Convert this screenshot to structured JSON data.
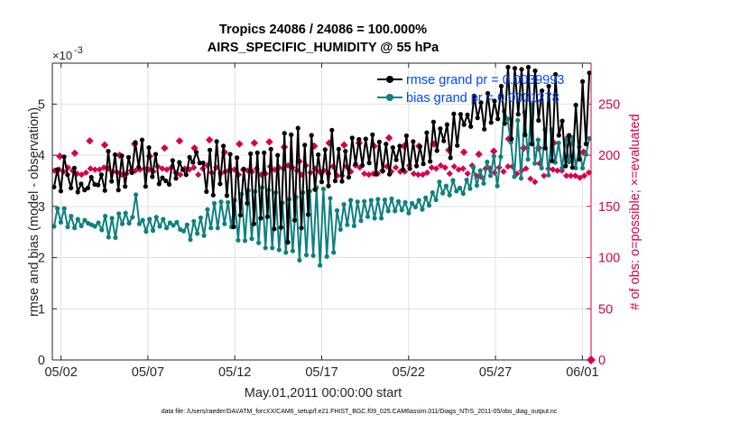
{
  "chart_data": {
    "type": "line",
    "title": [
      "Tropics 24086 / 24086 = 100.000%",
      "AIRS_SPECIFIC_HUMIDITY @ 55 hPa"
    ],
    "xlabel": "May.01,2011 00:00:00 start",
    "ylabel": "rmse and bias (model - observation)",
    "ylabel_right": "# of obs: o=possible; ×=evaluated",
    "exponent_label": "×10",
    "exponent_power": "-3",
    "footer": "data file: /Users/raeder/DAI/ATM_forcXX/CAM6_setup/f.e21.FHIST_BGC.f09_025.CAM6assim.011/Diags_NTrS_2011-05/obs_diag_output.nc",
    "xlim": [
      0.5,
      31.5
    ],
    "ylim": [
      0,
      5.8
    ],
    "ylim_right": [
      0,
      290
    ],
    "x_ticks": [
      1,
      6,
      11,
      16,
      21,
      26,
      31
    ],
    "x_tick_labels": [
      "05/02",
      "05/07",
      "05/12",
      "05/17",
      "05/22",
      "05/27",
      "06/01"
    ],
    "y_ticks": [
      "0",
      "1",
      "2",
      "3",
      "4",
      "5"
    ],
    "y_ticks_right": [
      "0",
      "50",
      "100",
      "150",
      "200",
      "250"
    ],
    "legend": {
      "position": "top-right",
      "entries": [
        "rmse grand pr = 0.0039993",
        "bias grand pr = 0.0031278"
      ]
    },
    "colors": {
      "rmse": "#000000",
      "bias": "#0f8080",
      "counts": "#d6004f",
      "grid": "#e0e0e0",
      "axis": "#262626",
      "legend_text": "#0046ff"
    },
    "series": [
      {
        "name": "rmse",
        "unit": "x1e-3",
        "values": [
          3.38,
          3.72,
          3.3,
          3.97,
          3.62,
          3.36,
          3.75,
          3.28,
          3.44,
          3.32,
          3.36,
          3.57,
          3.43,
          3.42,
          3.62,
          3.31,
          4.08,
          3.49,
          4.01,
          3.32,
          3.99,
          3.39,
          3.96,
          3.66,
          4.25,
          3.77,
          4.3,
          3.39,
          4.15,
          3.58,
          4.02,
          3.44,
          3.56,
          3.5,
          3.43,
          3.9,
          3.55,
          3.86,
          3.72,
          3.62,
          3.96,
          3.86,
          4.06,
          3.85,
          3.85,
          3.29,
          4.1,
          3.22,
          4.27,
          3.44,
          4.18,
          3.21,
          4.02,
          2.6,
          3.95,
          2.83,
          3.73,
          3.06,
          4.03,
          2.66,
          4.05,
          2.77,
          4.05,
          2.8,
          4.12,
          2.56,
          4.0,
          2.59,
          4.43,
          2.3,
          4.4,
          2.73,
          4.53,
          2.58,
          4.2,
          2.84,
          4.39,
          3.33,
          4.01,
          3.48,
          4.11,
          3.4,
          4.49,
          3.5,
          4.12,
          3.49,
          4.08,
          3.57,
          4.34,
          3.83,
          4.31,
          3.8,
          4.32,
          3.85,
          4.4,
          3.63,
          4.26,
          3.69,
          4.22,
          3.63,
          4.15,
          3.91,
          4.18,
          3.72,
          4.38,
          3.74,
          4.27,
          3.79,
          4.17,
          3.83,
          4.44,
          3.88,
          4.65,
          4.09,
          4.52,
          4.28,
          4.6,
          3.95,
          4.81,
          4.19,
          4.8,
          4.6,
          4.79,
          4.56,
          5.16,
          4.73,
          5.03,
          4.51,
          5.21,
          4.64,
          5.06,
          4.71,
          5.35,
          4.62,
          5.72,
          4.32,
          5.7,
          4.8,
          5.68,
          4.4,
          5.72,
          4.22,
          5.65,
          4.68,
          5.26,
          4.14,
          5.35,
          3.89,
          5.58,
          4.39,
          4.67,
          3.79,
          4.39,
          3.76,
          4.98,
          3.92,
          5.44,
          4.22,
          5.61
        ]
      },
      {
        "name": "bias",
        "unit": "x1e-3",
        "values": [
          2.61,
          2.96,
          2.69,
          2.96,
          2.6,
          2.81,
          2.58,
          2.75,
          2.62,
          2.73,
          2.67,
          2.64,
          2.61,
          2.68,
          2.54,
          2.81,
          2.4,
          2.77,
          2.39,
          2.86,
          2.66,
          2.87,
          2.67,
          2.79,
          3.23,
          2.66,
          2.73,
          2.51,
          2.75,
          2.53,
          2.79,
          2.61,
          2.75,
          2.58,
          2.68,
          2.63,
          2.69,
          2.55,
          2.52,
          2.64,
          2.35,
          2.71,
          2.47,
          2.78,
          2.43,
          2.94,
          2.58,
          3.06,
          2.58,
          3.09,
          2.66,
          3.08,
          2.6,
          3.12,
          2.34,
          3.24,
          2.33,
          3.31,
          2.37,
          3.29,
          2.29,
          3.37,
          2.19,
          3.32,
          2.19,
          3.27,
          2.15,
          3.07,
          2.1,
          3.14,
          2.13,
          3.18,
          1.95,
          3.27,
          2.05,
          3.3,
          2.04,
          3.37,
          1.85,
          3.34,
          2.02,
          3.16,
          2.1,
          2.92,
          2.55,
          3.04,
          2.64,
          3.12,
          2.62,
          3.09,
          2.72,
          3.1,
          2.8,
          3.12,
          2.77,
          3.14,
          2.77,
          3.13,
          2.91,
          3.15,
          2.91,
          3.1,
          2.93,
          3.08,
          2.87,
          3.06,
          2.99,
          3.12,
          2.94,
          3.17,
          3.02,
          3.27,
          3.13,
          3.48,
          3.26,
          3.4,
          3.22,
          3.51,
          3.3,
          3.36,
          3.25,
          3.52,
          3.35,
          3.76,
          3.41,
          3.7,
          3.45,
          3.87,
          3.6,
          3.98,
          3.4,
          3.97,
          4.86,
          4.71,
          4.25,
          3.58,
          4.68,
          3.55,
          4.84,
          3.92,
          4.99,
          3.84,
          4.3,
          3.75,
          4.5,
          3.61,
          4.5,
          3.86,
          4.24,
          3.75,
          4.3,
          3.87,
          4.35,
          3.75,
          4.16,
          3.75,
          4.02,
          4.33
        ]
      },
      {
        "name": "obs_possible",
        "marker": "o",
        "values": [
          199,
          202,
          214,
          210,
          200,
          211,
          199,
          207,
          214,
          207,
          215,
          203,
          211,
          212,
          213,
          208,
          194,
          209,
          212,
          210,
          212,
          209,
          217,
          209,
          209,
          211,
          205,
          203,
          201,
          204,
          216,
          207,
          207,
          212,
          218,
          203
        ]
      },
      {
        "name": "obs_evaluated",
        "marker": "x",
        "values": [
          185,
          186,
          184,
          188,
          185,
          182,
          181,
          183,
          187,
          186,
          186,
          188,
          187,
          184,
          183,
          181,
          182,
          185,
          185,
          186,
          187,
          186,
          184,
          189,
          187,
          186,
          188,
          183,
          181,
          187,
          186,
          188,
          181,
          187,
          190,
          183,
          188,
          182,
          184,
          186,
          186,
          181,
          186,
          185,
          184,
          187,
          181,
          182,
          189,
          186,
          188,
          187,
          190,
          188,
          185,
          181,
          190,
          183,
          187,
          184,
          185,
          182,
          189,
          180,
          180,
          189,
          184,
          190,
          188,
          182,
          181,
          182,
          182,
          185,
          189,
          184,
          188,
          184,
          184,
          190,
          182,
          181,
          181,
          183,
          188,
          187,
          190,
          188,
          182,
          189,
          186,
          187,
          182,
          190,
          180,
          179,
          187,
          187,
          183,
          188,
          184,
          189,
          189,
          182,
          185,
          187,
          177,
          174,
          192,
          180,
          187,
          186,
          185,
          185,
          180,
          180,
          180,
          178,
          180,
          183
        ]
      }
    ]
  }
}
